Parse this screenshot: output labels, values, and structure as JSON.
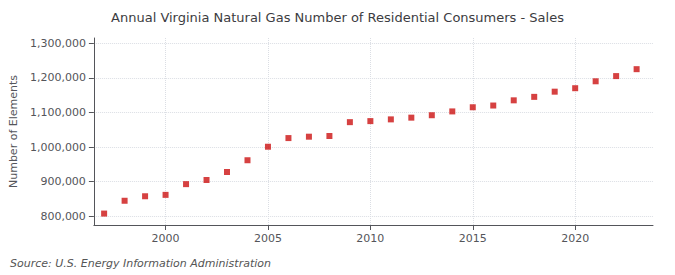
{
  "chart_data": {
    "type": "scatter",
    "title": "Annual Virginia Natural Gas Number of Residential Consumers - Sales",
    "ylabel": "Number of Elements",
    "annotations": [
      "Source: U.S. Energy Information Administration"
    ],
    "x": [
      1997,
      1998,
      1999,
      2000,
      2001,
      2002,
      2003,
      2004,
      2005,
      2006,
      2007,
      2008,
      2009,
      2010,
      2011,
      2012,
      2013,
      2014,
      2015,
      2016,
      2017,
      2018,
      2019,
      2020,
      2021,
      2022,
      2023
    ],
    "values": [
      808000,
      845000,
      858000,
      862000,
      893000,
      905000,
      928000,
      962000,
      1001000,
      1026000,
      1030000,
      1032000,
      1072000,
      1075000,
      1080000,
      1085000,
      1092000,
      1103000,
      1115000,
      1120000,
      1135000,
      1145000,
      1160000,
      1170000,
      1190000,
      1205000,
      1225000
    ],
    "color": "#cc1111",
    "marker": "square",
    "xlim": [
      1996.5,
      2023.8
    ],
    "xticks": [
      2000,
      2005,
      2010,
      2015,
      2020
    ],
    "ylim": [
      775000,
      1315000
    ],
    "yticks": [
      {
        "value": 800000,
        "label": "800,000"
      },
      {
        "value": 900000,
        "label": "900,000"
      },
      {
        "value": 1000000,
        "label": "1,000,000"
      },
      {
        "value": 1100000,
        "label": "1,100,000"
      },
      {
        "value": 1200000,
        "label": "1,200,000"
      },
      {
        "value": 1300000,
        "label": "1,300,000"
      }
    ],
    "grid": true
  }
}
